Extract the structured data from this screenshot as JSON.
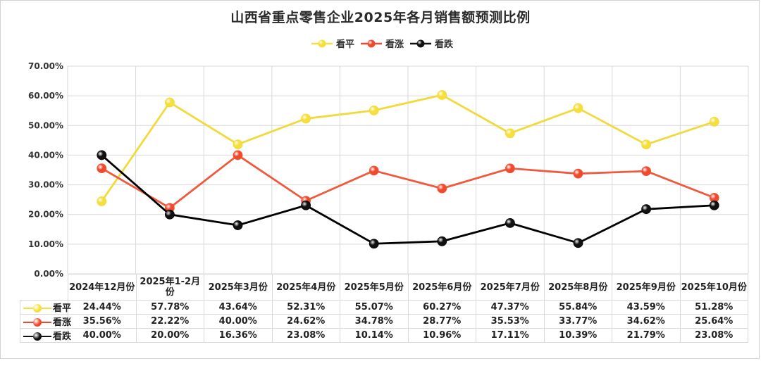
{
  "chart_data": {
    "type": "line",
    "title": "山西省重点零售企业2025年各月销售额预测比例",
    "categories": [
      "2024年12月份",
      "2025年1-2月份",
      "2025年3月份",
      "2025年4月份",
      "2025年5月份",
      "2025年6月份",
      "2025年7月份",
      "2025年8月份",
      "2025年9月份",
      "2025年10月份"
    ],
    "series": [
      {
        "name": "看平",
        "color": "#f5df3a",
        "values": [
          24.44,
          57.78,
          43.64,
          52.31,
          55.07,
          60.27,
          47.37,
          55.84,
          43.59,
          51.28
        ],
        "labels": [
          "24.44%",
          "57.78%",
          "43.64%",
          "52.31%",
          "55.07%",
          "60.27%",
          "47.37%",
          "55.84%",
          "43.59%",
          "51.28%"
        ]
      },
      {
        "name": "看涨",
        "color": "#f04a2e",
        "values": [
          35.56,
          22.22,
          40.0,
          24.62,
          34.78,
          28.77,
          35.53,
          33.77,
          34.62,
          25.64
        ],
        "labels": [
          "35.56%",
          "22.22%",
          "40.00%",
          "24.62%",
          "34.78%",
          "28.77%",
          "35.53%",
          "33.77%",
          "34.62%",
          "25.64%"
        ]
      },
      {
        "name": "看跌",
        "color": "#111111",
        "values": [
          40.0,
          20.0,
          16.36,
          23.08,
          10.14,
          10.96,
          17.11,
          10.39,
          21.79,
          23.08
        ],
        "labels": [
          "40.00%",
          "20.00%",
          "16.36%",
          "23.08%",
          "10.14%",
          "10.96%",
          "17.11%",
          "10.39%",
          "21.79%",
          "23.08%"
        ]
      }
    ],
    "y_ticks": [
      "0.00%",
      "10.00%",
      "20.00%",
      "30.00%",
      "40.00%",
      "50.00%",
      "60.00%",
      "70.00%"
    ],
    "ylim": [
      0,
      70
    ],
    "grid": true,
    "legend_position": "top-center"
  }
}
